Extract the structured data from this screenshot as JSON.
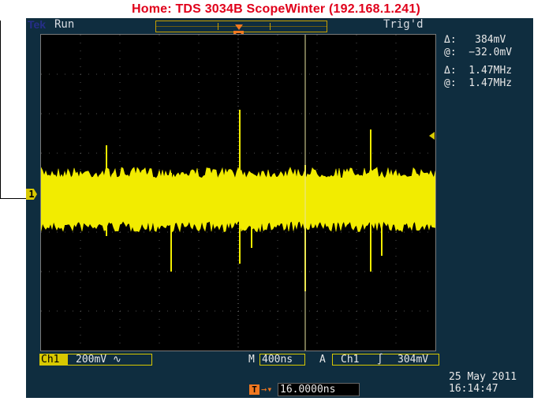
{
  "window": {
    "title": "Home:  TDS 3034B  ScopeWinter  (192.168.1.241)"
  },
  "scope": {
    "brand": "Tek",
    "status": "Run",
    "trigger_status": "Trig'd",
    "trigger_marker": "T",
    "channel_marker": "1",
    "cursor_readouts": [
      "Δ:   384mV",
      "@:  −32.0mV",
      "Δ:  1.47MHz",
      "@:  1.47MHz"
    ],
    "bottom": {
      "channel_label": "Ch1",
      "channel_scale": "200mV",
      "coupling_symbol": "∿",
      "timebase_prefix": "M",
      "timebase": "400ns",
      "trigger_prefix": "A",
      "trigger_source": "Ch1",
      "trigger_slope": "∫",
      "trigger_level": "304mV"
    },
    "position": {
      "icon": "T",
      "arrow": "→▾",
      "value": "16.0000ns"
    },
    "date": "25 May 2011",
    "time": "16:14:47",
    "colors": {
      "trace": "#f2ec00",
      "trigger": "#f07820",
      "title": "#e0001a",
      "background": "#0f2d3f"
    }
  }
}
